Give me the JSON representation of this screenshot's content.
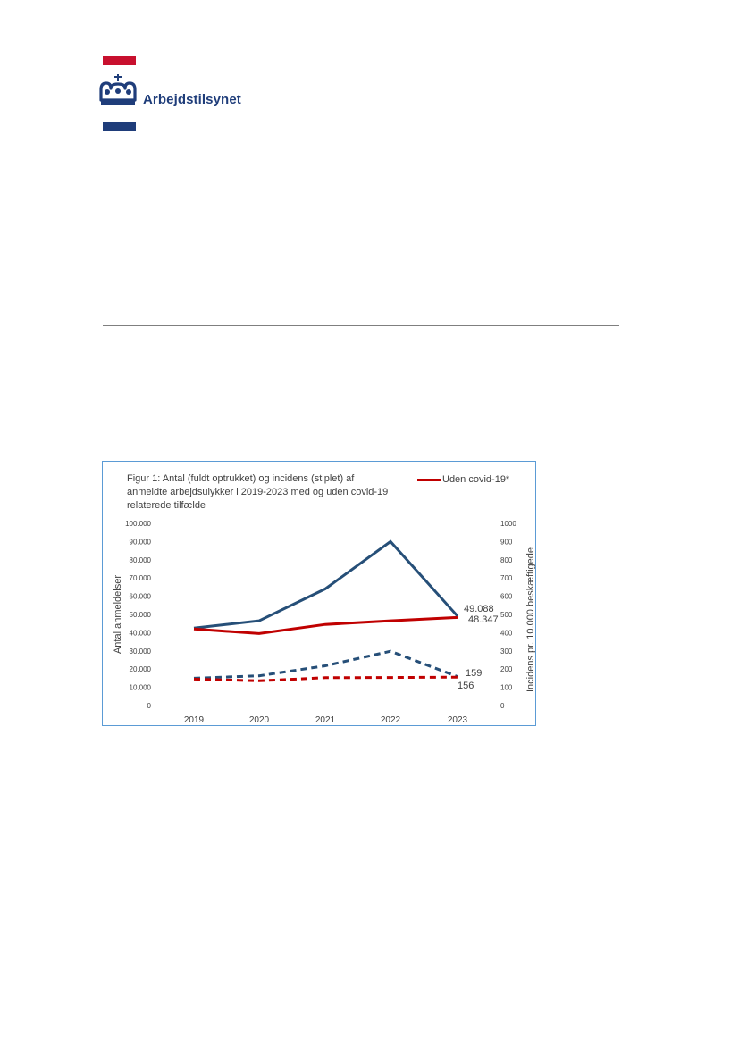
{
  "header": {
    "brand_name": "Arbejdstilsynet",
    "logo_icon": "crown-icon",
    "colors": {
      "red": "#c8102e",
      "blue": "#1f3d7a"
    }
  },
  "figure": {
    "title_lines": [
      "Figur 1: Antal (fuldt optrukket) og incidens (stiplet) af",
      "anmeldte arbejdsulykker i 2019-2023 med og uden covid-19",
      "relaterede tilfælde"
    ],
    "legend_label": "Uden covid-19*"
  },
  "chart_data": {
    "type": "line",
    "title": "Figur 1: Antal (fuldt optrukket) og incidens (stiplet) af anmeldte arbejdsulykker i 2019-2023 med og uden covid-19 relaterede tilfælde",
    "categories": [
      "2019",
      "2020",
      "2021",
      "2022",
      "2023"
    ],
    "ylabel": "Antal anmeldelser",
    "y2label": "Incidens pr. 10.000 beskæftigede",
    "ylim": [
      0,
      100000
    ],
    "y2lim": [
      0,
      1000
    ],
    "yticks": [
      "0",
      "10.000",
      "20.000",
      "30.000",
      "40.000",
      "50.000",
      "60.000",
      "70.000",
      "80.000",
      "90.000",
      "100.000"
    ],
    "y2ticks": [
      "0",
      "100",
      "200",
      "300",
      "400",
      "500",
      "600",
      "700",
      "800",
      "900",
      "1000"
    ],
    "grid": false,
    "legend_position": "top-right",
    "series": [
      {
        "axis": "left",
        "style": "solid",
        "color": "#264f78",
        "values": [
          42500,
          46500,
          64000,
          90000,
          49088
        ]
      },
      {
        "name": "Uden covid-19*",
        "axis": "left",
        "style": "solid",
        "color": "#c00000",
        "values": [
          42000,
          39500,
          44500,
          46500,
          48347
        ]
      },
      {
        "axis": "right",
        "style": "dashed",
        "color": "#264f78",
        "values": [
          150,
          163,
          218,
          298,
          159
        ]
      },
      {
        "name": "Uden covid-19*",
        "axis": "right",
        "style": "dashed",
        "color": "#c00000",
        "values": [
          145,
          136,
          153,
          154,
          156
        ]
      }
    ],
    "data_labels": [
      {
        "text": "49.088"
      },
      {
        "text": "48.347"
      },
      {
        "text": "159"
      },
      {
        "text": "156"
      }
    ]
  }
}
